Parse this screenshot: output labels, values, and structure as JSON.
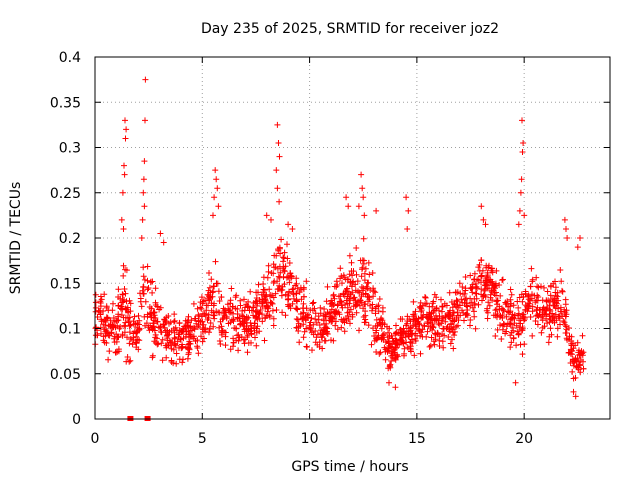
{
  "chart_data": {
    "type": "scatter",
    "title": "Day 235 of 2025, SRMTID for receiver joz2",
    "xlabel": "GPS time / hours",
    "ylabel": "SRMTID / TECUs",
    "xlim": [
      0,
      24
    ],
    "ylim": [
      0,
      0.4
    ],
    "x_ticks": [
      0,
      5,
      10,
      15,
      20
    ],
    "x_tick_labels": [
      "0",
      "5",
      "10",
      "15",
      "20"
    ],
    "y_ticks": [
      0,
      0.05,
      0.1,
      0.15,
      0.2,
      0.25,
      0.3,
      0.35,
      0.4
    ],
    "y_tick_labels": [
      "0",
      "0.05",
      "0.1",
      "0.15",
      "0.2",
      "0.25",
      "0.3",
      "0.35",
      "0.4"
    ],
    "grid": true,
    "marker": "+",
    "series_color": "#ff0000",
    "data_time_range": [
      0,
      22.8
    ],
    "points_per_hour": 80,
    "zero_markers": [
      1.65,
      2.45
    ],
    "envelope": [
      {
        "x": 0.0,
        "mean": 0.115,
        "spread": 0.035
      },
      {
        "x": 0.5,
        "mean": 0.105,
        "spread": 0.035
      },
      {
        "x": 1.0,
        "mean": 0.095,
        "spread": 0.03
      },
      {
        "x": 1.3,
        "mean": 0.13,
        "spread": 0.05
      },
      {
        "x": 1.6,
        "mean": 0.1,
        "spread": 0.04
      },
      {
        "x": 2.0,
        "mean": 0.09,
        "spread": 0.03
      },
      {
        "x": 2.3,
        "mean": 0.14,
        "spread": 0.06
      },
      {
        "x": 2.7,
        "mean": 0.11,
        "spread": 0.04
      },
      {
        "x": 3.0,
        "mean": 0.105,
        "spread": 0.035
      },
      {
        "x": 3.5,
        "mean": 0.09,
        "spread": 0.03
      },
      {
        "x": 4.5,
        "mean": 0.095,
        "spread": 0.025
      },
      {
        "x": 5.5,
        "mean": 0.13,
        "spread": 0.045
      },
      {
        "x": 6.0,
        "mean": 0.11,
        "spread": 0.035
      },
      {
        "x": 7.0,
        "mean": 0.105,
        "spread": 0.03
      },
      {
        "x": 8.0,
        "mean": 0.13,
        "spread": 0.04
      },
      {
        "x": 8.6,
        "mean": 0.16,
        "spread": 0.05
      },
      {
        "x": 9.5,
        "mean": 0.12,
        "spread": 0.04
      },
      {
        "x": 10.5,
        "mean": 0.1,
        "spread": 0.03
      },
      {
        "x": 11.5,
        "mean": 0.13,
        "spread": 0.04
      },
      {
        "x": 12.5,
        "mean": 0.15,
        "spread": 0.05
      },
      {
        "x": 13.0,
        "mean": 0.12,
        "spread": 0.04
      },
      {
        "x": 13.8,
        "mean": 0.075,
        "spread": 0.025
      },
      {
        "x": 14.5,
        "mean": 0.095,
        "spread": 0.03
      },
      {
        "x": 15.0,
        "mean": 0.105,
        "spread": 0.03
      },
      {
        "x": 16.5,
        "mean": 0.11,
        "spread": 0.03
      },
      {
        "x": 17.5,
        "mean": 0.13,
        "spread": 0.035
      },
      {
        "x": 18.2,
        "mean": 0.15,
        "spread": 0.04
      },
      {
        "x": 19.0,
        "mean": 0.12,
        "spread": 0.035
      },
      {
        "x": 19.7,
        "mean": 0.1,
        "spread": 0.04
      },
      {
        "x": 20.2,
        "mean": 0.13,
        "spread": 0.035
      },
      {
        "x": 21.0,
        "mean": 0.115,
        "spread": 0.035
      },
      {
        "x": 21.8,
        "mean": 0.13,
        "spread": 0.04
      },
      {
        "x": 22.3,
        "mean": 0.065,
        "spread": 0.025
      },
      {
        "x": 22.8,
        "mean": 0.07,
        "spread": 0.025
      }
    ],
    "outliers": [
      {
        "x": 1.4,
        "y": 0.33
      },
      {
        "x": 1.45,
        "y": 0.32
      },
      {
        "x": 1.42,
        "y": 0.31
      },
      {
        "x": 1.35,
        "y": 0.28
      },
      {
        "x": 1.38,
        "y": 0.27
      },
      {
        "x": 1.3,
        "y": 0.25
      },
      {
        "x": 1.25,
        "y": 0.22
      },
      {
        "x": 1.33,
        "y": 0.21
      },
      {
        "x": 2.35,
        "y": 0.375
      },
      {
        "x": 2.33,
        "y": 0.33
      },
      {
        "x": 2.3,
        "y": 0.285
      },
      {
        "x": 2.28,
        "y": 0.265
      },
      {
        "x": 2.25,
        "y": 0.25
      },
      {
        "x": 2.3,
        "y": 0.235
      },
      {
        "x": 2.22,
        "y": 0.22
      },
      {
        "x": 2.18,
        "y": 0.2
      },
      {
        "x": 3.05,
        "y": 0.205
      },
      {
        "x": 3.2,
        "y": 0.195
      },
      {
        "x": 5.6,
        "y": 0.275
      },
      {
        "x": 5.65,
        "y": 0.265
      },
      {
        "x": 5.7,
        "y": 0.255
      },
      {
        "x": 5.55,
        "y": 0.245
      },
      {
        "x": 5.75,
        "y": 0.235
      },
      {
        "x": 5.5,
        "y": 0.225
      },
      {
        "x": 8.5,
        "y": 0.325
      },
      {
        "x": 8.55,
        "y": 0.305
      },
      {
        "x": 8.6,
        "y": 0.29
      },
      {
        "x": 8.45,
        "y": 0.275
      },
      {
        "x": 8.5,
        "y": 0.255
      },
      {
        "x": 8.58,
        "y": 0.24
      },
      {
        "x": 8.0,
        "y": 0.225
      },
      {
        "x": 8.2,
        "y": 0.22
      },
      {
        "x": 9.0,
        "y": 0.215
      },
      {
        "x": 9.2,
        "y": 0.21
      },
      {
        "x": 11.7,
        "y": 0.245
      },
      {
        "x": 11.8,
        "y": 0.235
      },
      {
        "x": 12.4,
        "y": 0.27
      },
      {
        "x": 12.45,
        "y": 0.255
      },
      {
        "x": 12.5,
        "y": 0.245
      },
      {
        "x": 12.3,
        "y": 0.235
      },
      {
        "x": 12.55,
        "y": 0.225
      },
      {
        "x": 13.1,
        "y": 0.23
      },
      {
        "x": 14.5,
        "y": 0.245
      },
      {
        "x": 14.6,
        "y": 0.23
      },
      {
        "x": 14.55,
        "y": 0.21
      },
      {
        "x": 18.0,
        "y": 0.235
      },
      {
        "x": 18.1,
        "y": 0.22
      },
      {
        "x": 18.2,
        "y": 0.215
      },
      {
        "x": 19.9,
        "y": 0.33
      },
      {
        "x": 19.95,
        "y": 0.305
      },
      {
        "x": 19.92,
        "y": 0.295
      },
      {
        "x": 19.88,
        "y": 0.265
      },
      {
        "x": 19.85,
        "y": 0.25
      },
      {
        "x": 19.8,
        "y": 0.23
      },
      {
        "x": 20.0,
        "y": 0.225
      },
      {
        "x": 19.75,
        "y": 0.215
      },
      {
        "x": 21.9,
        "y": 0.22
      },
      {
        "x": 21.95,
        "y": 0.21
      },
      {
        "x": 22.0,
        "y": 0.2
      },
      {
        "x": 22.6,
        "y": 0.2
      },
      {
        "x": 22.5,
        "y": 0.19
      },
      {
        "x": 22.3,
        "y": 0.03
      },
      {
        "x": 22.4,
        "y": 0.025
      },
      {
        "x": 14.0,
        "y": 0.035
      },
      {
        "x": 13.7,
        "y": 0.04
      },
      {
        "x": 19.6,
        "y": 0.04
      }
    ]
  }
}
